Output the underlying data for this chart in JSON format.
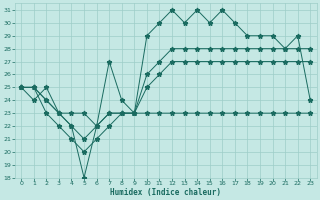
{
  "xlabel": "Humidex (Indice chaleur)",
  "background_color": "#c5e8e4",
  "grid_color": "#9ecdc8",
  "line_color": "#1a6b60",
  "ylim": [
    18,
    31.5
  ],
  "xlim": [
    -0.5,
    23.5
  ],
  "yticks": [
    18,
    19,
    20,
    21,
    22,
    23,
    24,
    25,
    26,
    27,
    28,
    29,
    30,
    31
  ],
  "xticks": [
    0,
    1,
    2,
    3,
    4,
    5,
    6,
    7,
    8,
    9,
    10,
    11,
    12,
    13,
    14,
    15,
    16,
    17,
    18,
    19,
    20,
    21,
    22,
    23
  ],
  "series_main": [
    25,
    24,
    25,
    23,
    23,
    23,
    22,
    27,
    24,
    23,
    29,
    30,
    31,
    30,
    31,
    30,
    31,
    30,
    29,
    29,
    29,
    28,
    29,
    24
  ],
  "series_flat": [
    25,
    25,
    24,
    23,
    22,
    18,
    22,
    23,
    23,
    23,
    23,
    23,
    23,
    23,
    23,
    23,
    23,
    23,
    23,
    23,
    23,
    23,
    23,
    23
  ],
  "series_rise1": [
    25,
    25,
    23,
    22,
    21,
    20,
    21,
    22,
    23,
    23,
    25,
    26,
    27,
    27,
    27,
    27,
    27,
    27,
    27,
    27,
    27,
    27,
    27,
    27
  ],
  "series_rise2": [
    25,
    25,
    24,
    23,
    22,
    21,
    22,
    23,
    23,
    23,
    26,
    27,
    28,
    28,
    28,
    28,
    28,
    28,
    28,
    28,
    28,
    28,
    28,
    28
  ]
}
